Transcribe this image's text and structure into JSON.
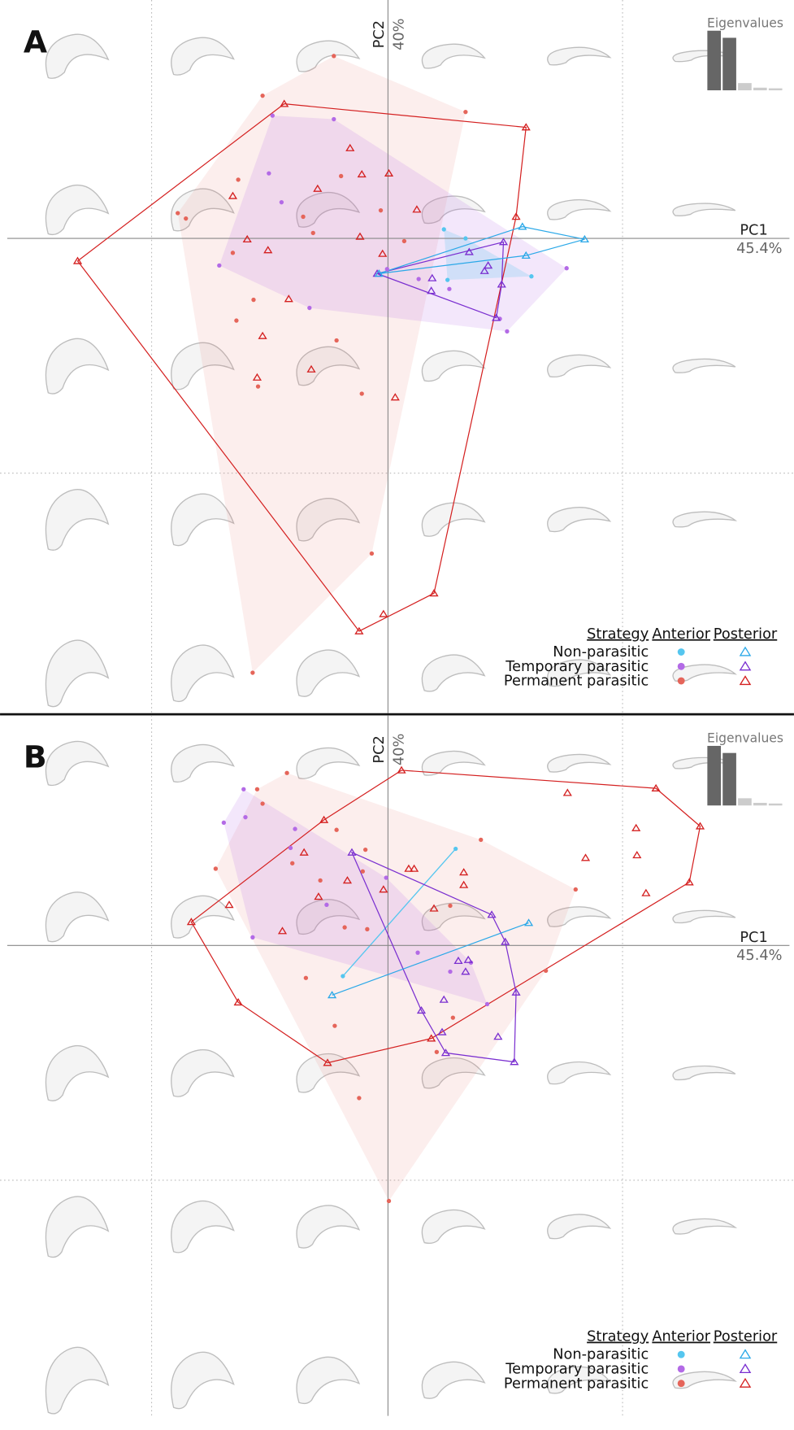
{
  "chart_data": [
    {
      "type": "scatter",
      "panel_label": "A",
      "x_label": "PC1",
      "x_label_value": "45.4%",
      "y_label": "PC2",
      "y_label_value": "40%",
      "xlim": [
        -4.22,
        4.45
      ],
      "ylim": [
        -5.26,
        2.64
      ],
      "legend_title": "Strategy",
      "marker_labels": [
        "Anterior",
        "Posterior"
      ],
      "eigenvalues": {
        "title": "Eigenvalues",
        "values": [
          45.4,
          40,
          5.5,
          2,
          1.5
        ],
        "ylim": [
          0,
          45.4
        ],
        "colors": [
          "#666666",
          "#666666",
          "#cccccc",
          "#cccccc",
          "#cccccc"
        ]
      },
      "series": [
        {
          "name": "Non-parasitic",
          "color": "#55c6ef",
          "posterior_color": "#2aa8e8",
          "anterior": {
            "x": [
              0.62,
              0.86,
              0.66,
              1.59
            ],
            "y": [
              0.1,
              0,
              -0.46,
              -0.42
            ]
          },
          "posterior": {
            "x": [
              1.49,
              2.18,
              1.53,
              -0.1
            ],
            "y": [
              0.13,
              -0.01,
              -0.19,
              -0.39
            ]
          }
        },
        {
          "name": "Temporary parasitic",
          "color": "#b36ae6",
          "posterior_color": "#7a2fd0",
          "anterior": {
            "x": [
              -1.28,
              -0.6,
              -1.32,
              -1.18,
              -1.87,
              -0.87,
              0.34,
              0.68,
              1.98,
              1.24,
              1.32,
              -0.01
            ],
            "y": [
              1.36,
              1.32,
              0.72,
              0.4,
              -0.3,
              -0.77,
              -0.45,
              -0.56,
              -0.33,
              -0.89,
              -1.03,
              -0.34
            ]
          },
          "posterior": {
            "x": [
              1.28,
              0.9,
              1.11,
              1.07,
              0.49,
              0.48,
              1.26,
              1.2,
              -0.12
            ],
            "y": [
              -0.04,
              -0.15,
              -0.3,
              -0.36,
              -0.44,
              -0.58,
              -0.51,
              -0.88,
              -0.39
            ]
          }
        },
        {
          "name": "Permanent parasitic",
          "color": "#e5655a",
          "posterior_color": "#d42020",
          "anterior": {
            "x": [
              -1.39,
              -0.6,
              0.86,
              -0.52,
              -1.66,
              -2.33,
              -2.24,
              -0.94,
              -0.83,
              -0.08,
              0.18,
              -1.72,
              -1.49,
              -1.68,
              -0.57,
              -1.44,
              -0.29,
              -0.18,
              -1.5
            ],
            "y": [
              1.58,
              2.02,
              1.4,
              0.69,
              0.65,
              0.28,
              0.22,
              0.24,
              0.06,
              0.31,
              -0.03,
              -0.16,
              -0.68,
              -0.91,
              -1.13,
              -1.64,
              -1.72,
              -3.49,
              -4.81
            ]
          },
          "posterior": {
            "x": [
              -1.15,
              1.53,
              -0.42,
              -0.29,
              0.01,
              -0.78,
              -1.72,
              0.32,
              1.42,
              -1.56,
              -0.31,
              -1.33,
              -0.06,
              -3.44,
              -1.1,
              -1.39,
              -0.85,
              -1.45,
              0.08,
              0.51,
              -0.05,
              -0.32
            ],
            "y": [
              1.49,
              1.23,
              1.0,
              0.71,
              0.72,
              0.55,
              0.47,
              0.32,
              0.24,
              -0.01,
              0.02,
              -0.13,
              -0.17,
              -0.25,
              -0.67,
              -1.08,
              -1.45,
              -1.54,
              -1.76,
              -3.93,
              -4.16,
              -4.35
            ]
          }
        }
      ]
    },
    {
      "type": "scatter",
      "panel_label": "B",
      "x_label": "PC1",
      "x_label_value": "45.4%",
      "y_label": "PC2",
      "y_label_value": "40%",
      "xlim": [
        -4.22,
        4.45
      ],
      "ylim": [
        -5.21,
        2.55
      ],
      "legend_title": "Strategy",
      "marker_labels": [
        "Anterior",
        "Posterior"
      ],
      "eigenvalues": {
        "title": "Eigenvalues",
        "values": [
          45.4,
          40,
          5.5,
          2,
          1.5
        ],
        "ylim": [
          0,
          45.4
        ],
        "colors": [
          "#666666",
          "#666666",
          "#cccccc",
          "#cccccc",
          "#cccccc"
        ]
      },
      "series": [
        {
          "name": "Non-parasitic",
          "color": "#55c6ef",
          "posterior_color": "#2aa8e8",
          "anterior": {
            "x": [
              0.75,
              -0.5
            ],
            "y": [
              1.07,
              -0.34
            ]
          },
          "posterior": {
            "x": [
              1.56,
              -0.62
            ],
            "y": [
              0.25,
              -0.55
            ]
          }
        },
        {
          "name": "Temporary parasitic",
          "color": "#b36ae6",
          "posterior_color": "#7a2fd0",
          "anterior": {
            "x": [
              -1.6,
              -1.58,
              -1.82,
              -1.03,
              -1.08,
              -0.68,
              -1.5,
              -0.02,
              0.33,
              0.69,
              0.92,
              1.1
            ],
            "y": [
              1.73,
              1.42,
              1.36,
              1.29,
              1.08,
              0.45,
              0.09,
              0.75,
              -0.08,
              -0.29,
              -0.19,
              -0.65
            ]
          },
          "posterior": {
            "x": [
              -0.4,
              1.15,
              1.3,
              0.78,
              0.89,
              0.86,
              1.42,
              0.62,
              0.37,
              0.6,
              1.22,
              0.64,
              1.4
            ],
            "y": [
              1.03,
              0.34,
              0.04,
              -0.17,
              -0.16,
              -0.29,
              -0.52,
              -0.6,
              -0.72,
              -0.96,
              -1.01,
              -1.19,
              -1.29
            ]
          }
        },
        {
          "name": "Permanent parasitic",
          "color": "#e5655a",
          "posterior_color": "#d42020",
          "anterior": {
            "x": [
              -1.12,
              -1.45,
              -1.39,
              -0.57,
              -0.25,
              1.03,
              -1.91,
              -1.06,
              -0.75,
              2.08,
              -0.28,
              0.69,
              -0.48,
              -0.23,
              -0.91,
              -0.59,
              1.75,
              0.72,
              0.54,
              -0.32,
              0.01
            ],
            "y": [
              1.91,
              1.73,
              1.57,
              1.28,
              1.06,
              1.17,
              0.85,
              0.91,
              0.72,
              0.62,
              0.82,
              0.44,
              0.2,
              0.18,
              -0.36,
              -0.89,
              -0.28,
              -0.8,
              -1.18,
              -1.69,
              -2.83
            ]
          },
          "posterior": {
            "x": [
              0.15,
              2.97,
              1.99,
              -0.71,
              3.46,
              2.75,
              -0.93,
              2.19,
              2.76,
              0.23,
              0.29,
              0.84,
              -0.45,
              0.84,
              -0.05,
              -0.77,
              2.86,
              3.34,
              -1.76,
              0.51,
              -1.17,
              -2.18,
              -1.66,
              0.48,
              -0.67
            ],
            "y": [
              1.94,
              1.74,
              1.69,
              1.39,
              1.32,
              1.3,
              1.03,
              0.97,
              1.0,
              0.85,
              0.85,
              0.81,
              0.72,
              0.67,
              0.62,
              0.54,
              0.58,
              0.7,
              0.45,
              0.41,
              0.16,
              0.26,
              -0.63,
              -1.03,
              -1.3
            ]
          }
        }
      ]
    }
  ]
}
